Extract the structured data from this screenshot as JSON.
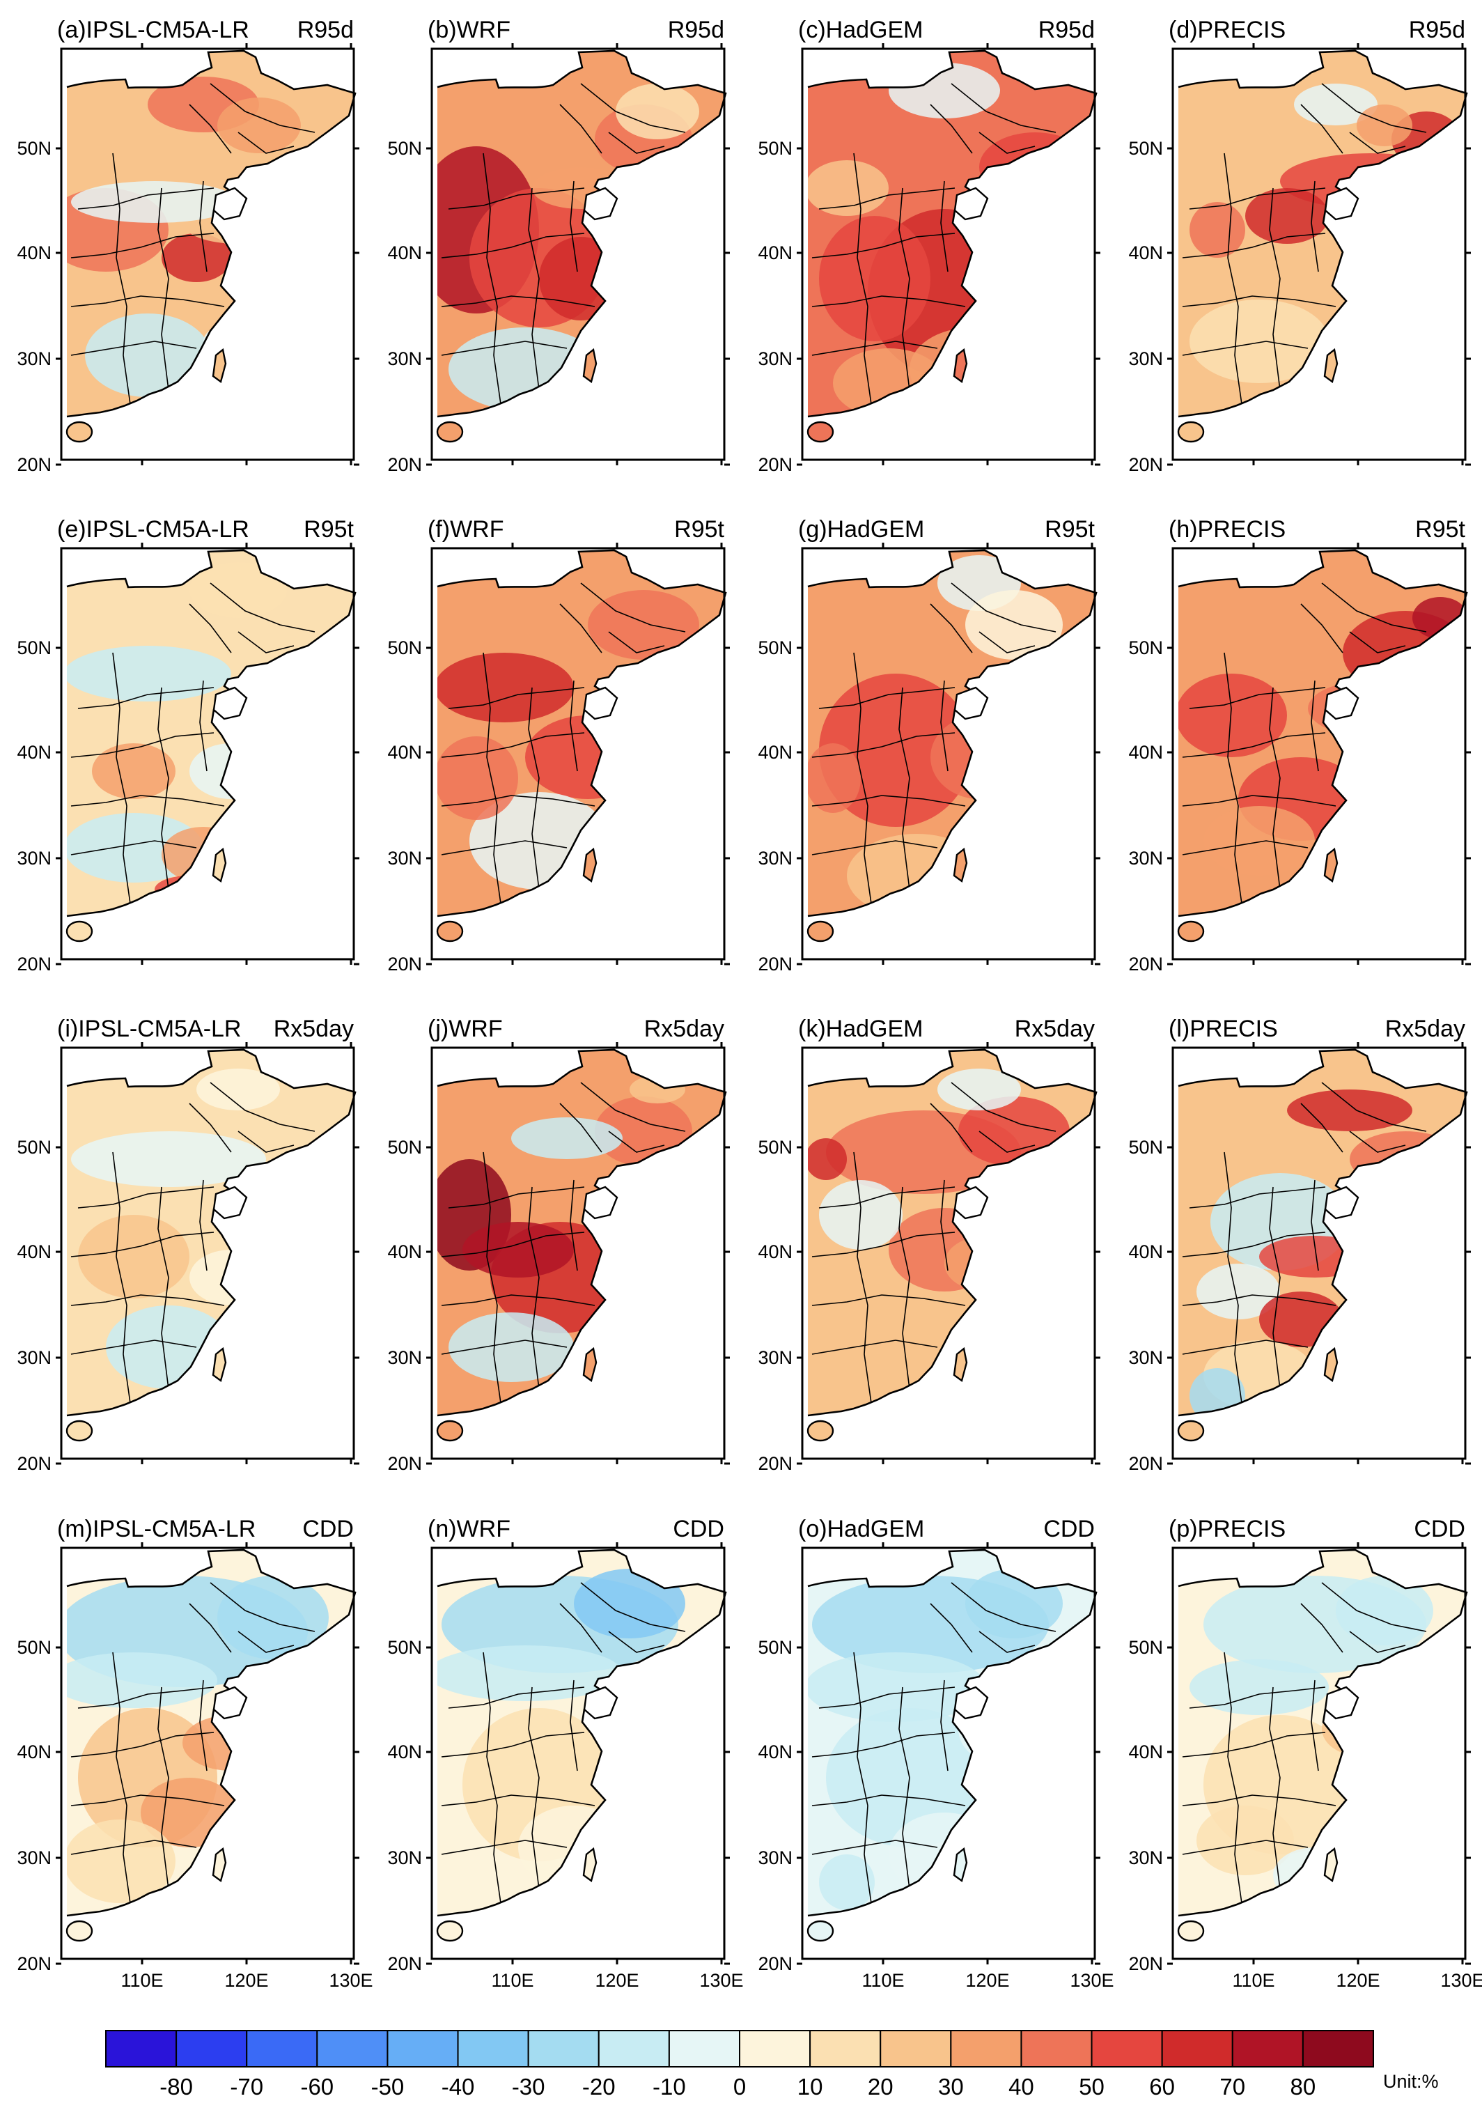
{
  "figure": {
    "panels": [
      {
        "label": "(a)IPSL-CM5A-LR",
        "index": "R95d",
        "scheme": "a"
      },
      {
        "label": "(b)WRF",
        "index": "R95d",
        "scheme": "b"
      },
      {
        "label": "(c)HadGEM",
        "index": "R95d",
        "scheme": "c"
      },
      {
        "label": "(d)PRECIS",
        "index": "R95d",
        "scheme": "d"
      },
      {
        "label": "(e)IPSL-CM5A-LR",
        "index": "R95t",
        "scheme": "e"
      },
      {
        "label": "(f)WRF",
        "index": "R95t",
        "scheme": "f"
      },
      {
        "label": "(g)HadGEM",
        "index": "R95t",
        "scheme": "g"
      },
      {
        "label": "(h)PRECIS",
        "index": "R95t",
        "scheme": "h"
      },
      {
        "label": "(i)IPSL-CM5A-LR",
        "index": "Rx5day",
        "scheme": "i"
      },
      {
        "label": "(j)WRF",
        "index": "Rx5day",
        "scheme": "j"
      },
      {
        "label": "(k)HadGEM",
        "index": "Rx5day",
        "scheme": "k"
      },
      {
        "label": "(l)PRECIS",
        "index": "Rx5day",
        "scheme": "l"
      },
      {
        "label": "(m)IPSL-CM5A-LR",
        "index": "CDD",
        "scheme": "m"
      },
      {
        "label": "(n)WRF",
        "index": "CDD",
        "scheme": "n"
      },
      {
        "label": "(o)HadGEM",
        "index": "CDD",
        "scheme": "o"
      },
      {
        "label": "(p)PRECIS",
        "index": "CDD",
        "scheme": "p"
      }
    ],
    "lat_labels": [
      "50N",
      "40N",
      "30N",
      "20N"
    ],
    "lon_labels": [
      "110E",
      "120E",
      "130E"
    ],
    "colorbar": {
      "labels": [
        "-80",
        "-70",
        "-60",
        "-50",
        "-40",
        "-30",
        "-20",
        "-10",
        "0",
        "10",
        "20",
        "30",
        "40",
        "50",
        "60",
        "70",
        "80"
      ],
      "unit": "Unit:%",
      "colors": [
        "#2a14d9",
        "#2c3ef0",
        "#3a6af6",
        "#4f8ff7",
        "#66aef6",
        "#82c8f3",
        "#a4dcf1",
        "#c8ecf3",
        "#e6f6f6",
        "#fdf4dc",
        "#fbe0b2",
        "#f8c48c",
        "#f4a06c",
        "#ee7458",
        "#e5463f",
        "#d02b2b",
        "#b01426",
        "#8e0a1e"
      ]
    }
  }
}
